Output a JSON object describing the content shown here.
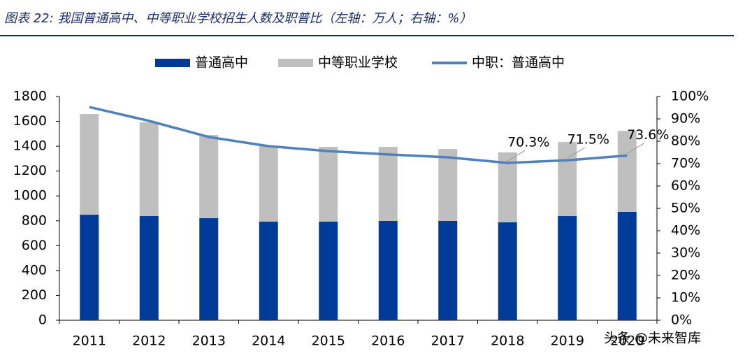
{
  "chart_data": {
    "type": "bar",
    "title": "图表 22: 我国普通高中、中等职业学校招生人数及职普比（左轴：万人；右轴：%）",
    "categories": [
      "2011",
      "2012",
      "2013",
      "2014",
      "2015",
      "2016",
      "2017",
      "2018",
      "2019",
      "2020"
    ],
    "series": [
      {
        "name": "普通高中",
        "color": "#003b99",
        "values": [
          849,
          838,
          821,
          793,
          793,
          799,
          799,
          788,
          838,
          872
        ]
      },
      {
        "name": "中等职业学校",
        "color": "#bfbfbf",
        "values": [
          810,
          754,
          670,
          613,
          602,
          596,
          579,
          562,
          596,
          652
        ]
      },
      {
        "name": "中职：普通高中",
        "color": "#4f81bd",
        "axis": "y2",
        "values": [
          95.3,
          89.1,
          81.9,
          77.8,
          75.6,
          74.1,
          72.8,
          70.3,
          71.5,
          73.6
        ],
        "value_labels": [
          null,
          null,
          null,
          null,
          null,
          null,
          null,
          "70.3%",
          "71.5%",
          "73.6%"
        ]
      }
    ],
    "ylim": [
      0,
      1800
    ],
    "yticks": [
      0,
      200,
      400,
      600,
      800,
      1000,
      1200,
      1400,
      1600,
      1800
    ],
    "y2lim": [
      0,
      100
    ],
    "y2ticks": [
      {
        "value": 0,
        "label": "0%"
      },
      {
        "value": 10,
        "label": "10%"
      },
      {
        "value": 20,
        "label": "20%"
      },
      {
        "value": 30,
        "label": "30%"
      },
      {
        "value": 40,
        "label": "40%"
      },
      {
        "value": 50,
        "label": "50%"
      },
      {
        "value": 60,
        "label": "60%"
      },
      {
        "value": 70,
        "label": "70%"
      },
      {
        "value": 80,
        "label": "80%"
      },
      {
        "value": 90,
        "label": "90%"
      },
      {
        "value": 100,
        "label": "100%"
      }
    ],
    "watermark": "头条 @未来智库"
  }
}
